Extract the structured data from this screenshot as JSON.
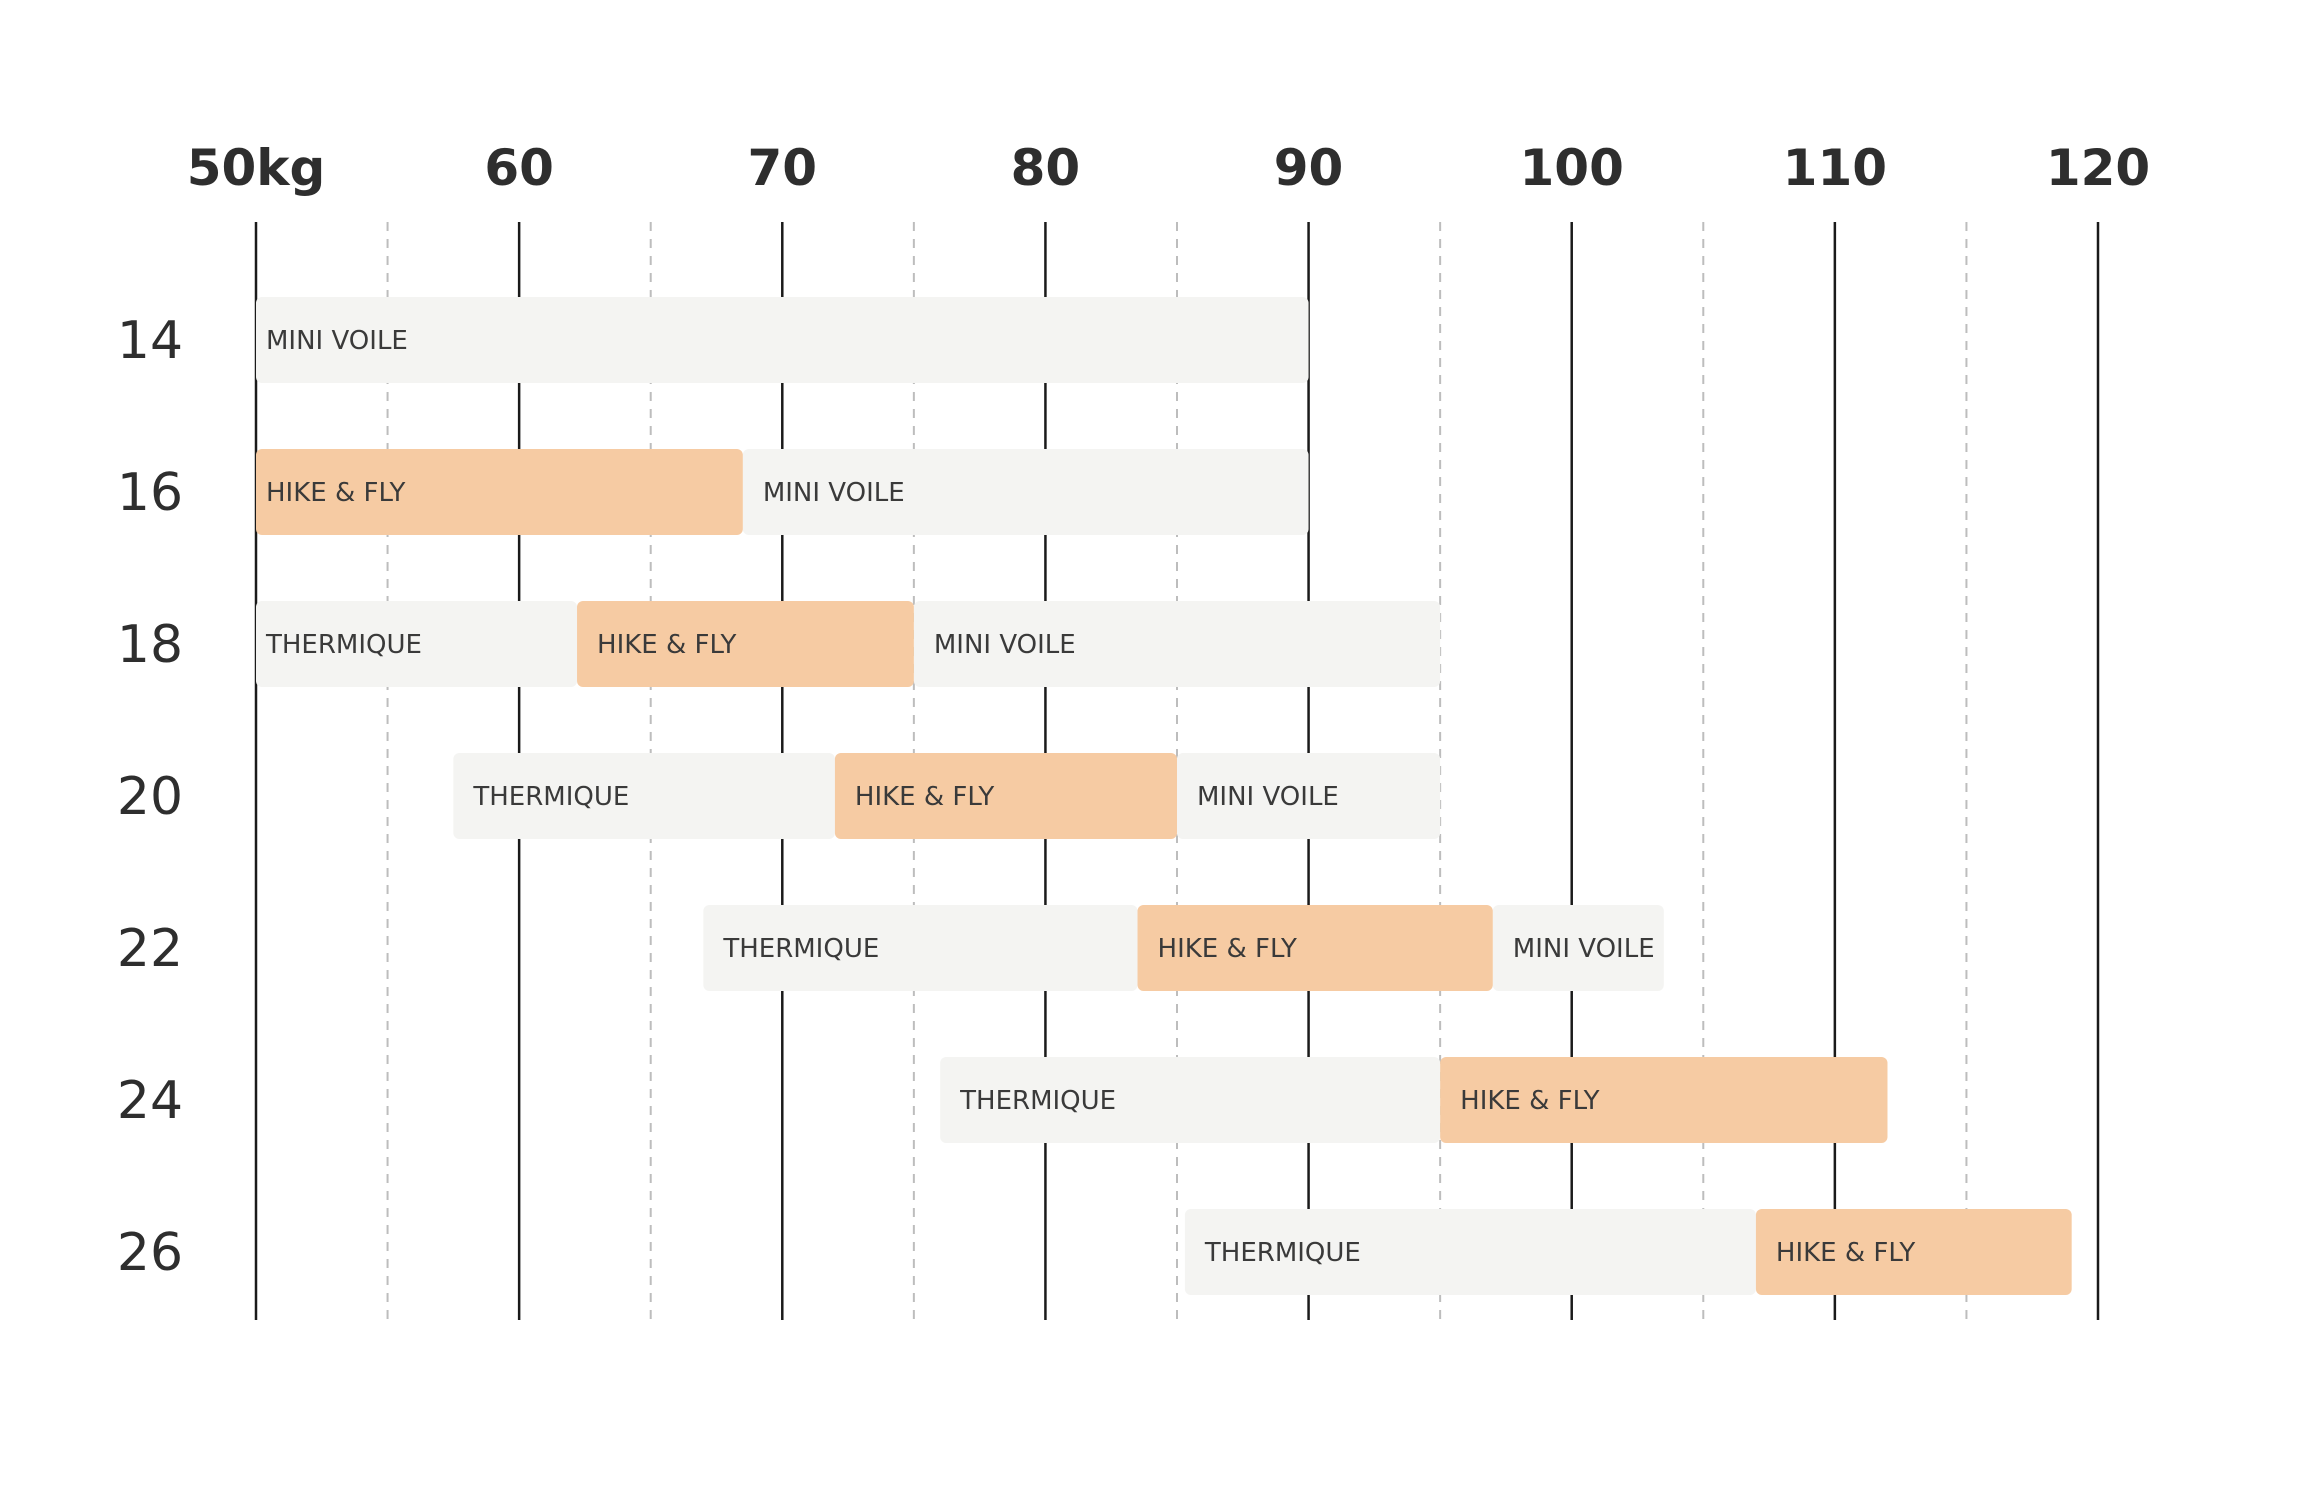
{
  "chart_data": {
    "type": "bar",
    "title": "",
    "xlabel": "",
    "ylabel": "",
    "x_unit": "kg",
    "xlim": [
      50,
      120
    ],
    "x_major_ticks": [
      50,
      60,
      70,
      80,
      90,
      100,
      110,
      120
    ],
    "x_minor_ticks": [
      55,
      65,
      75,
      85,
      95,
      105,
      115
    ],
    "x_tick_labels": [
      "50kg",
      "60",
      "70",
      "80",
      "90",
      "100",
      "110",
      "120"
    ],
    "grid": true,
    "categories": [
      "14",
      "16",
      "18",
      "20",
      "22",
      "24",
      "26"
    ],
    "series": [
      {
        "name": "THERMIQUE",
        "values": [
          null,
          null,
          [
            50,
            62.2
          ],
          [
            57.5,
            72
          ],
          [
            67,
            83.5
          ],
          [
            76,
            95
          ],
          [
            85.3,
            107
          ]
        ]
      },
      {
        "name": "HIKE & FLY",
        "values": [
          null,
          [
            50,
            68.5
          ],
          [
            62.2,
            75
          ],
          [
            72,
            85
          ],
          [
            83.5,
            97
          ],
          [
            95,
            112
          ],
          [
            107,
            119
          ]
        ]
      },
      {
        "name": "MINI VOILE",
        "values": [
          [
            50,
            90
          ],
          [
            68.5,
            90
          ],
          [
            75,
            95
          ],
          [
            85,
            95
          ],
          [
            97,
            103.5
          ],
          null,
          null
        ]
      }
    ],
    "colors": {
      "THERMIQUE": "#f4f4f2",
      "HIKE & FLY": "#f6cba3",
      "MINI VOILE": "#f4f4f2",
      "major_grid": "#1a1a1a",
      "minor_grid": "#bdbdbd"
    }
  }
}
